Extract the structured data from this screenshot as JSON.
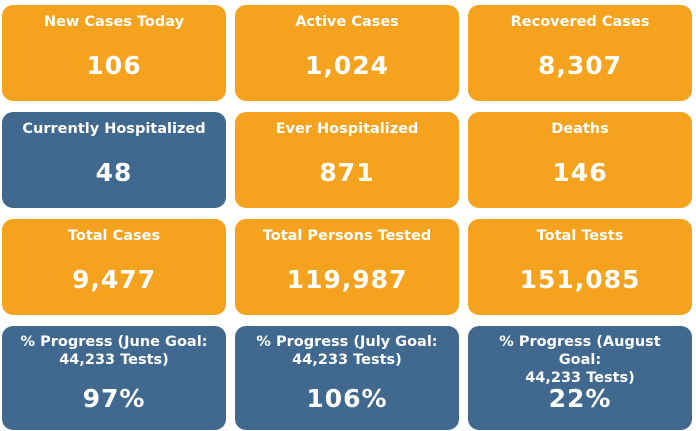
{
  "colors": {
    "orange": "#f5a31e",
    "blue": "#41698f",
    "text": "#ffffff"
  },
  "cards": [
    {
      "title": "New Cases Today",
      "value": "106",
      "color": "orange"
    },
    {
      "title": "Active Cases",
      "value": "1,024",
      "color": "orange"
    },
    {
      "title": "Recovered Cases",
      "value": "8,307",
      "color": "orange"
    },
    {
      "title": "Currently Hospitalized",
      "value": "48",
      "color": "blue"
    },
    {
      "title": "Ever Hospitalized",
      "value": "871",
      "color": "orange"
    },
    {
      "title": "Deaths",
      "value": "146",
      "color": "orange"
    },
    {
      "title": "Total Cases",
      "value": "9,477",
      "color": "orange"
    },
    {
      "title": "Total Persons Tested",
      "value": "119,987",
      "color": "orange"
    },
    {
      "title": "Total Tests",
      "value": "151,085",
      "color": "orange"
    },
    {
      "title": "% Progress (June Goal:\n44,233 Tests)",
      "value": "97%",
      "color": "blue"
    },
    {
      "title": "% Progress (July Goal:\n44,233 Tests)",
      "value": "106%",
      "color": "blue"
    },
    {
      "title": "% Progress (August Goal:\n44,233 Tests)",
      "value": "22%",
      "color": "blue"
    }
  ]
}
